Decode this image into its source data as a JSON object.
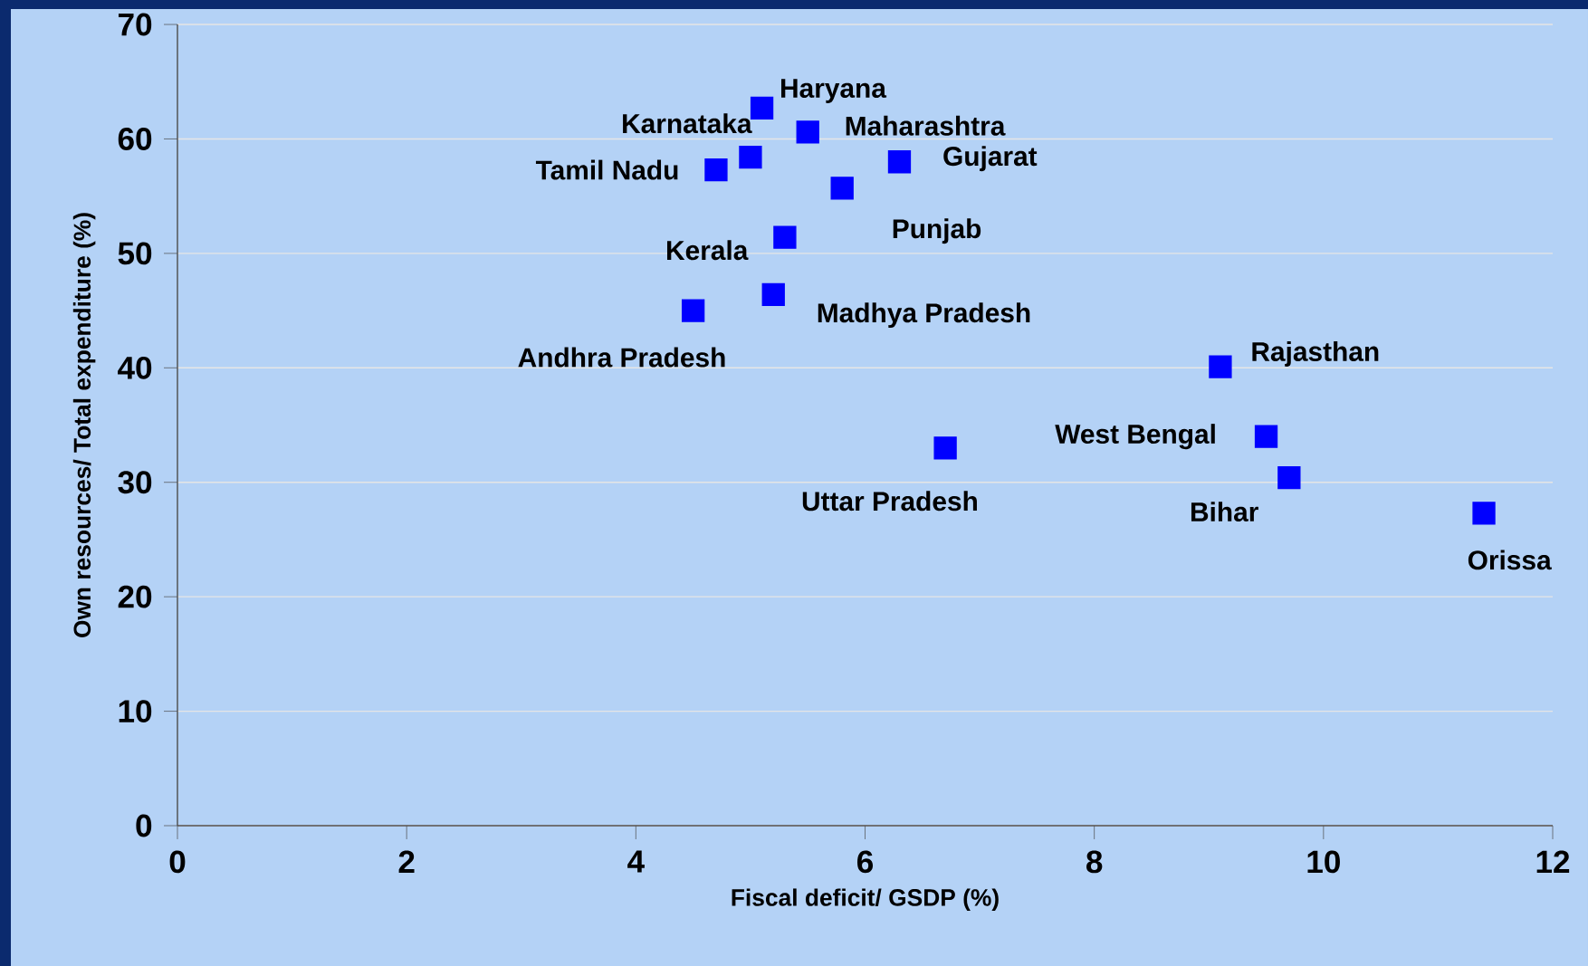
{
  "chart_data": {
    "type": "scatter",
    "xlabel": "Fiscal deficit/ GSDP (%)",
    "ylabel": "Own resources/ Total expenditure (%)",
    "xlim": [
      0,
      12
    ],
    "ylim": [
      0,
      70
    ],
    "xticks": [
      0,
      2,
      4,
      6,
      8,
      10,
      12
    ],
    "yticks": [
      0,
      10,
      20,
      30,
      40,
      50,
      60,
      70
    ],
    "grid": "y",
    "marker": "square",
    "series": [
      {
        "color": "#0000ff",
        "x": [
          5.1,
          5.5,
          5.0,
          4.7,
          6.3,
          5.8,
          5.3,
          5.2,
          4.5,
          9.1,
          6.7,
          9.5,
          9.7,
          11.4
        ],
        "values": [
          62.7,
          60.6,
          58.4,
          57.3,
          58.0,
          55.7,
          51.4,
          46.4,
          45.0,
          40.1,
          33.0,
          34.0,
          30.4,
          27.3
        ],
        "value_labels": [
          "Haryana",
          "Maharashtra",
          "Karnataka",
          "Tamil Nadu",
          "Gujarat",
          "Punjab",
          "Kerala",
          "Madhya Pradesh",
          "Andhra Pradesh",
          "Rajasthan",
          "Uttar Pradesh",
          "West Bengal",
          "Bihar",
          "Orissa"
        ]
      }
    ]
  }
}
